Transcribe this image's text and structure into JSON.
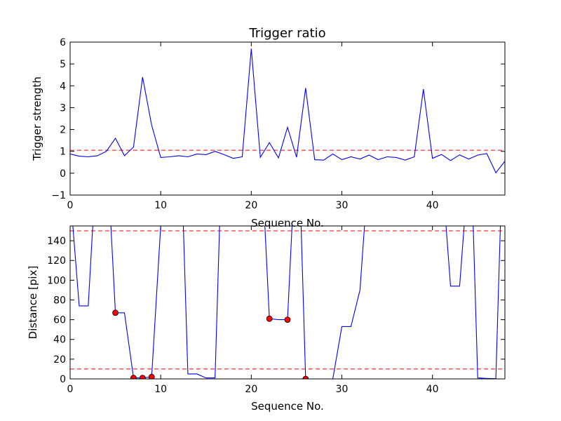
{
  "chart_data": [
    {
      "type": "line",
      "title": "Trigger ratio",
      "xlabel": "Sequence No.",
      "ylabel": "Trigger strength",
      "xlim": [
        0,
        48
      ],
      "ylim": [
        -1,
        6
      ],
      "xticks": [
        0,
        10,
        20,
        30,
        40
      ],
      "yticks": [
        -1,
        0,
        1,
        2,
        3,
        4,
        5,
        6
      ],
      "grid": false,
      "line_color": "#0000ff",
      "threshold_color": "#ff0000",
      "thresholds": [
        1.05
      ],
      "series": [
        {
          "x": [
            0,
            1,
            2,
            3,
            4,
            5,
            6,
            7,
            8,
            9,
            10,
            11,
            12,
            13,
            14,
            15,
            16,
            17,
            18,
            19,
            20,
            21,
            22,
            23,
            24,
            25,
            26,
            27,
            28,
            29,
            30,
            31,
            32,
            33,
            34,
            35,
            36,
            37,
            38,
            39,
            40,
            41,
            42,
            43,
            44,
            45,
            46,
            47,
            48
          ],
          "values": [
            0.88,
            0.78,
            0.75,
            0.8,
            1.0,
            1.6,
            0.8,
            1.2,
            4.4,
            2.2,
            0.72,
            0.75,
            0.8,
            0.75,
            0.88,
            0.85,
            1.0,
            0.85,
            0.68,
            0.75,
            5.7,
            0.73,
            1.4,
            0.7,
            2.1,
            0.73,
            3.9,
            0.62,
            0.6,
            0.88,
            0.62,
            0.75,
            0.65,
            0.83,
            0.62,
            0.75,
            0.72,
            0.6,
            0.75,
            3.85,
            0.68,
            0.86,
            0.58,
            0.84,
            0.65,
            0.83,
            0.9,
            0.02,
            0.55
          ]
        }
      ]
    },
    {
      "type": "line",
      "title": "",
      "xlabel": "Sequence No.",
      "ylabel": "Distance [pix]",
      "xlim": [
        0,
        48
      ],
      "ylim": [
        0,
        155
      ],
      "xticks": [
        0,
        10,
        20,
        30,
        40
      ],
      "yticks": [
        0,
        20,
        40,
        60,
        80,
        100,
        120,
        140
      ],
      "grid": false,
      "line_color": "#0000ff",
      "threshold_color": "#ff0000",
      "marker_color": "#ff0000",
      "thresholds": [
        150,
        10
      ],
      "series": [
        {
          "x": [
            0.3,
            1,
            2,
            2.5,
            4.5,
            5,
            6,
            7,
            8,
            9,
            10,
            12.5,
            13,
            14,
            15,
            16,
            16.5,
            21.5,
            22,
            23,
            24,
            24.5,
            25.5,
            26,
            27,
            28,
            29,
            30,
            31,
            32,
            32.5,
            41.5,
            42,
            43,
            43.5,
            44.5,
            45,
            46,
            47,
            47.5
          ],
          "values": [
            155,
            74,
            74,
            155,
            155,
            67,
            67,
            1,
            1,
            2,
            155,
            155,
            5,
            5,
            1,
            1,
            155,
            155,
            61,
            60,
            60,
            155,
            155,
            0,
            0,
            0,
            0,
            53,
            53,
            90,
            155,
            155,
            94,
            94,
            155,
            155,
            1,
            0.5,
            0.2,
            155
          ]
        }
      ],
      "markers": [
        {
          "x": 5,
          "y": 67
        },
        {
          "x": 7,
          "y": 1
        },
        {
          "x": 8,
          "y": 1
        },
        {
          "x": 9,
          "y": 2
        },
        {
          "x": 22,
          "y": 61
        },
        {
          "x": 24,
          "y": 60
        },
        {
          "x": 26,
          "y": 0
        }
      ]
    }
  ]
}
